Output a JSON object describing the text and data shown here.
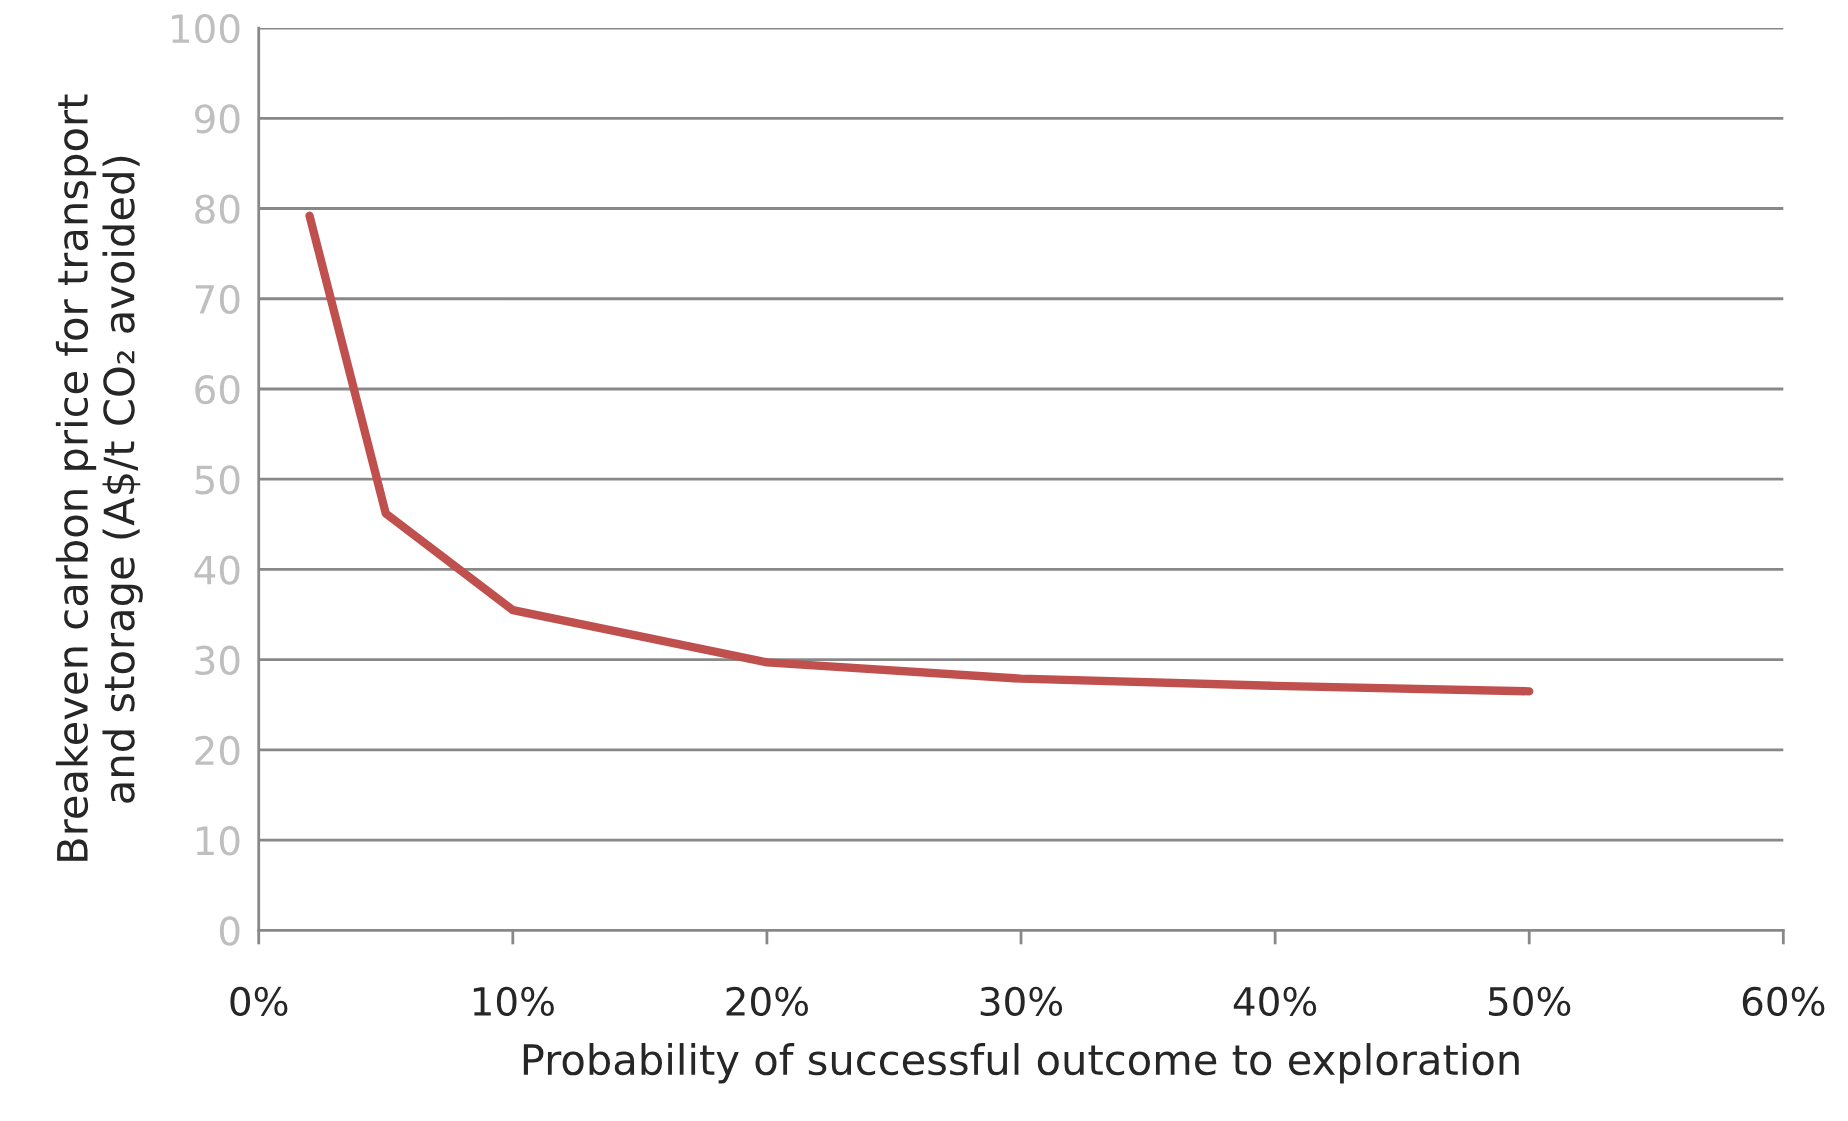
{
  "chart_data": {
    "type": "line",
    "xlabel": "Probability of successful outcome to exploration",
    "ylabel": "Breakeven carbon price for transport\nand storage (A$/t CO₂ avoided)",
    "x": [
      2,
      5,
      10,
      20,
      30,
      40,
      50
    ],
    "series": [
      {
        "color": "#c0504d",
        "values": [
          79.2,
          46.2,
          35.5,
          29.7,
          27.9,
          27.1,
          26.5
        ]
      }
    ],
    "xlim": [
      0,
      60
    ],
    "xticks": [
      {
        "value": 0,
        "label": "0%"
      },
      {
        "value": 10,
        "label": "10%"
      },
      {
        "value": 20,
        "label": "20%"
      },
      {
        "value": 30,
        "label": "30%"
      },
      {
        "value": 40,
        "label": "40%"
      },
      {
        "value": 50,
        "label": "50%"
      },
      {
        "value": 60,
        "label": "60%"
      }
    ],
    "ylim": [
      0,
      100
    ],
    "yticks": [
      0,
      10,
      20,
      30,
      40,
      50,
      60,
      70,
      80,
      90,
      100
    ],
    "grid": "y",
    "marker": "none",
    "line_style": "solid"
  }
}
